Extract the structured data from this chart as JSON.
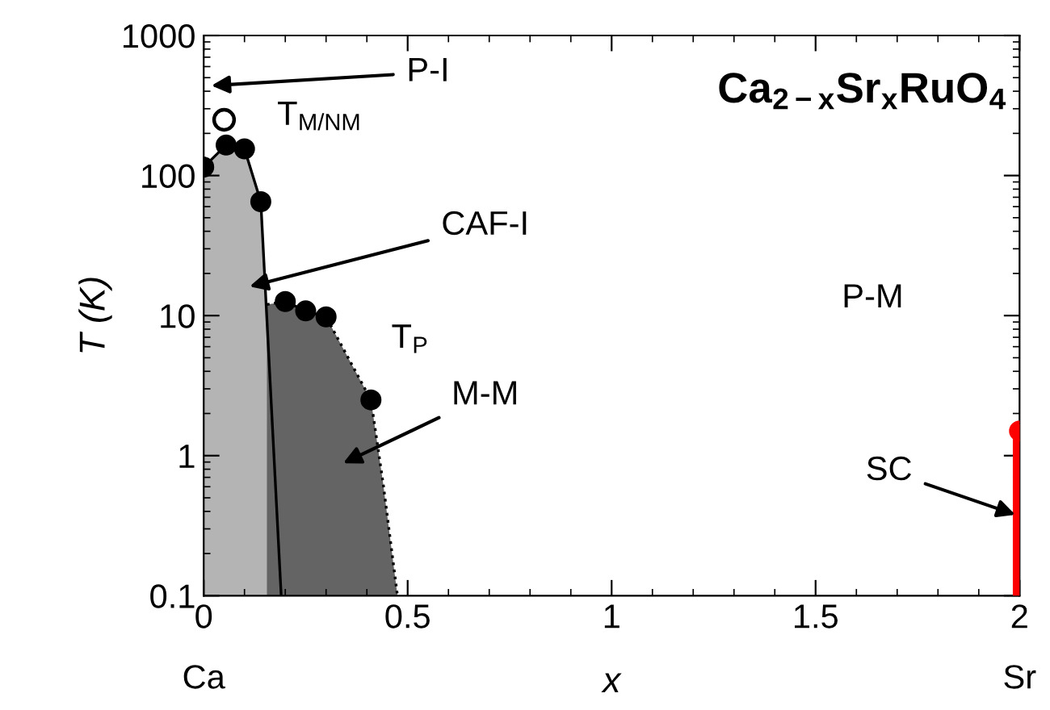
{
  "chart_data": {
    "type": "area",
    "title": "Ca$_{2−x}$Sr$_{x}$RuO$_{4}$",
    "xlabel": "x",
    "ylabel": "T (K)",
    "log": "y",
    "xlim": [
      0,
      2
    ],
    "xticks": [
      0,
      0.5,
      1,
      1.5,
      2
    ],
    "ylim": [
      0.1,
      1000
    ],
    "yticks": [
      0.1,
      1,
      10,
      100,
      1000
    ],
    "grid": false,
    "series": [
      {
        "color": "#b4b4b4",
        "line_style": "solid",
        "x": [
          0,
          0.055,
          0.1,
          0.14,
          0.19
        ],
        "values": [
          115,
          165,
          155,
          65,
          0.1
        ]
      },
      {
        "color": "#646464",
        "line_style": "dotted",
        "x": [
          0.155,
          0.2,
          0.25,
          0.3,
          0.41,
          0.44,
          0.475
        ],
        "values": [
          12,
          12.6,
          10.8,
          9.8,
          2.5,
          0.63,
          0.1
        ]
      },
      {
        "type": "scatter",
        "color": "#000000",
        "marker": "circle",
        "x": [
          0,
          0.055,
          0.1,
          0.14
        ],
        "values": [
          115,
          165,
          155,
          65
        ]
      },
      {
        "type": "scatter",
        "color": "#ffffff",
        "marker": "circle",
        "x": [
          0.05
        ],
        "values": [
          250
        ]
      },
      {
        "type": "scatter",
        "color": "#000000",
        "marker": "circle",
        "x": [
          0.2,
          0.25,
          0.3,
          0.41
        ],
        "values": [
          12.6,
          10.8,
          9.8,
          2.5
        ]
      },
      {
        "type": "line",
        "color": "#ff0000",
        "line_style": "solid",
        "x": [
          2,
          2
        ],
        "values": [
          0.1,
          1.5
        ]
      },
      {
        "type": "scatter",
        "color": "#ff0000",
        "marker": "circle",
        "x": [
          2
        ],
        "values": [
          1.5
        ]
      }
    ],
    "annotations": [
      "P-I",
      "T$_{M/NM}$",
      "CAF-I",
      "T$_{P}$",
      "P-M",
      "M-M",
      {
        "text": "SC",
        "x": 2,
        "y": 0.37
      },
      "Ca",
      "Sr"
    ]
  }
}
